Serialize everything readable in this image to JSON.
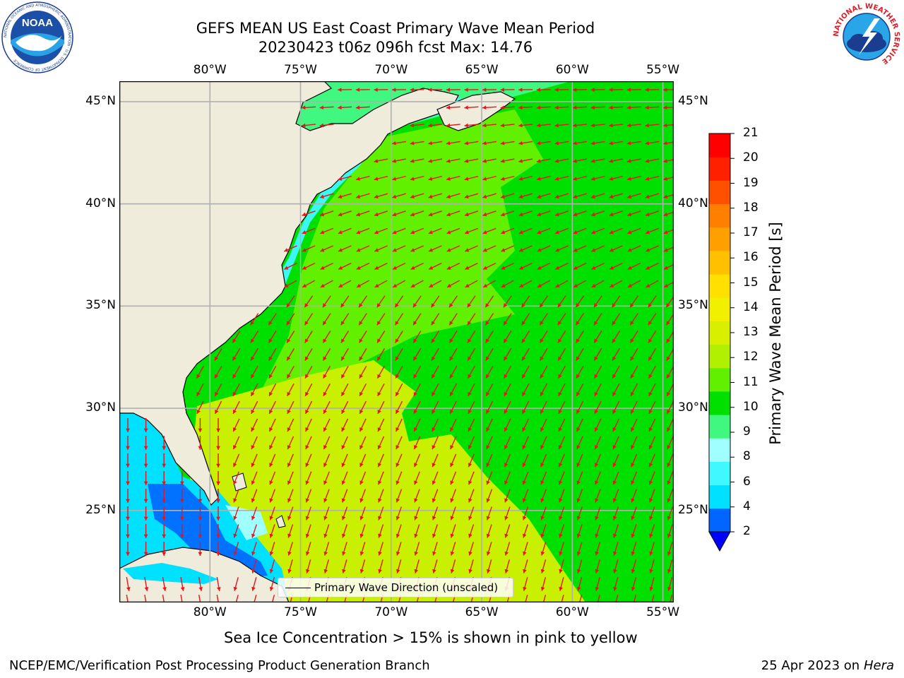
{
  "title": {
    "line1": "GEFS MEAN US East Coast Primary Wave Mean Period",
    "line2": "20230423 t06z 096h fcst   Max: 14.76"
  },
  "map": {
    "lon_ticks": [
      "80°W",
      "75°W",
      "70°W",
      "65°W",
      "60°W",
      "55°W"
    ],
    "lat_ticks": [
      "45°N",
      "40°N",
      "35°N",
      "30°N",
      "25°N"
    ],
    "lon_values": [
      -80,
      -75,
      -70,
      -65,
      -60,
      -55
    ],
    "lat_values": [
      45,
      40,
      35,
      30,
      25
    ],
    "extent": {
      "lon_min": -85,
      "lon_max": -54.4,
      "lat_min": 20.5,
      "lat_max": 46
    },
    "colors": {
      "land": "#efecdc",
      "grid": "#b0b0b0",
      "arrow": "#e8141c"
    }
  },
  "legend": {
    "label": "Primary Wave Direction (unscaled)"
  },
  "colorbar": {
    "title": "Primary Wave Mean Period [s]",
    "tick_labels": [
      "2",
      "4",
      "6",
      "8",
      "9",
      "10",
      "11",
      "12",
      "13",
      "14",
      "15",
      "16",
      "17",
      "18",
      "19",
      "20",
      "21"
    ],
    "colors": [
      "#0066ff",
      "#00e0ff",
      "#40f8ff",
      "#a0ffff",
      "#40f880",
      "#00e000",
      "#60f000",
      "#b0f000",
      "#d8f000",
      "#f0f000",
      "#ffe000",
      "#ffc000",
      "#ffa000",
      "#ff8000",
      "#ff5000",
      "#ff2000",
      "#ff0000"
    ],
    "extend_color": "#0000ff"
  },
  "note": "Sea Ice Concentration > 15% is shown in pink to yellow",
  "footer": {
    "left": "NCEP/EMC/Verification Post Processing Product Generation Branch",
    "right_prefix": "25 Apr 2023 on ",
    "right_host": "Hera"
  },
  "logos": {
    "noaa_text": "NOAA",
    "noaa_ring": "NATIONAL OCEANIC AND ATMOSPHERIC ADMINISTRATION · U.S. DEPARTMENT OF COMMERCE",
    "nws_ring": "NATIONAL WEATHER SERVICE"
  }
}
